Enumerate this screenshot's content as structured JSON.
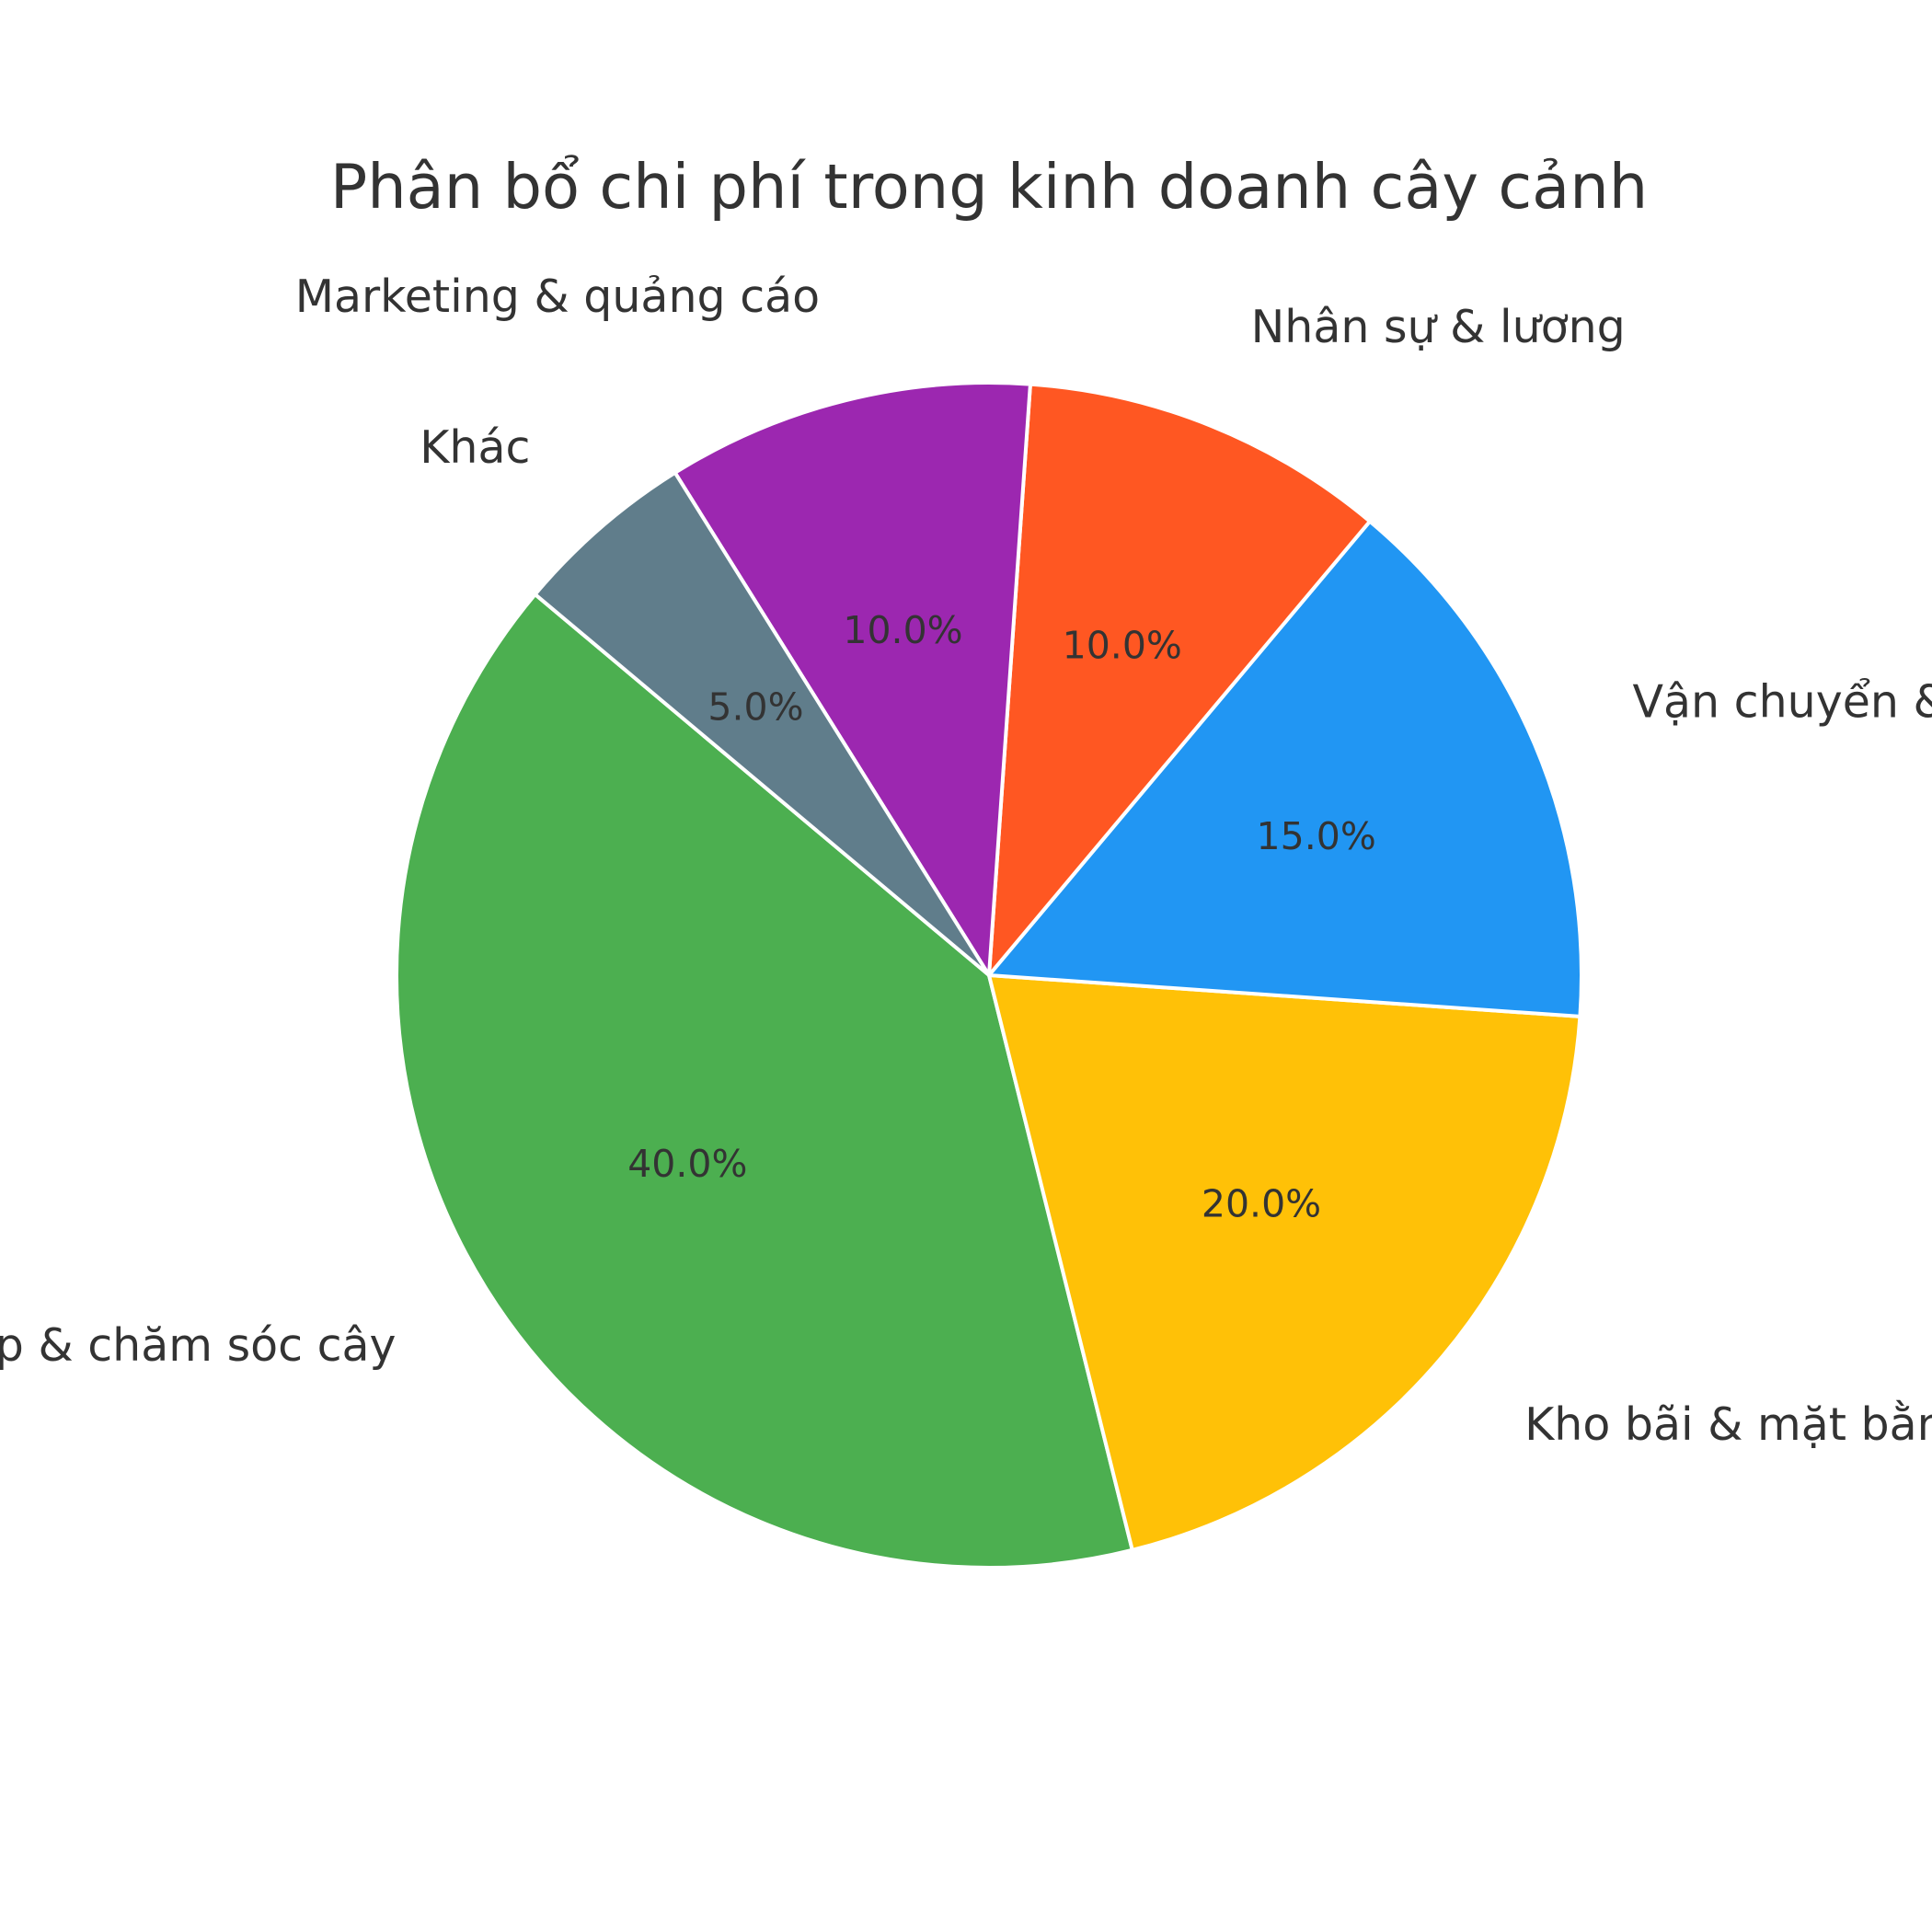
{
  "chart_data": {
    "type": "pie",
    "title": "Phân bổ chi phí trong kinh doanh cây cảnh",
    "start_angle_deg": 140,
    "direction": "counterclockwise",
    "slices": [
      {
        "label": "Nhập & chăm sóc cây",
        "value": 40.0,
        "pct_label": "40.0%",
        "color": "#4CAF50"
      },
      {
        "label": "Kho bãi & mặt bằng",
        "value": 20.0,
        "pct_label": "20.0%",
        "color": "#FFC107"
      },
      {
        "label": "Vận chuyển & giao hàng",
        "value": 15.0,
        "pct_label": "15.0%",
        "color": "#2196F3"
      },
      {
        "label": "Nhân sự & lương",
        "value": 10.0,
        "pct_label": "10.0%",
        "color": "#FF5722"
      },
      {
        "label": "Marketing & quảng cáo",
        "value": 10.0,
        "pct_label": "10.0%",
        "color": "#9C27B0"
      },
      {
        "label": "Khác",
        "value": 5.0,
        "pct_label": "5.0%",
        "color": "#607D8B"
      }
    ]
  }
}
